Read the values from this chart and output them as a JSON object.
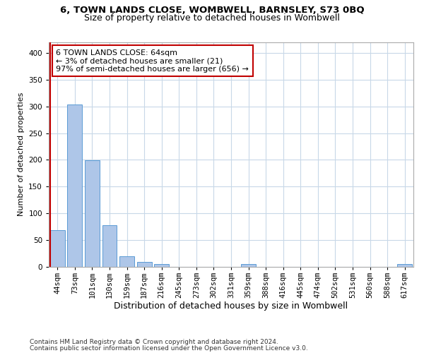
{
  "title": "6, TOWN LANDS CLOSE, WOMBWELL, BARNSLEY, S73 0BQ",
  "subtitle": "Size of property relative to detached houses in Wombwell",
  "xlabel": "Distribution of detached houses by size in Wombwell",
  "ylabel": "Number of detached properties",
  "categories": [
    "44sqm",
    "73sqm",
    "101sqm",
    "130sqm",
    "159sqm",
    "187sqm",
    "216sqm",
    "245sqm",
    "273sqm",
    "302sqm",
    "331sqm",
    "359sqm",
    "388sqm",
    "416sqm",
    "445sqm",
    "474sqm",
    "502sqm",
    "531sqm",
    "560sqm",
    "588sqm",
    "617sqm"
  ],
  "values": [
    68,
    304,
    199,
    77,
    19,
    8,
    4,
    0,
    0,
    0,
    0,
    5,
    0,
    0,
    0,
    0,
    0,
    0,
    0,
    0,
    4
  ],
  "bar_color": "#aec6e8",
  "bar_edge_color": "#5b9bd5",
  "highlight_color": "#c00000",
  "highlight_index": 0,
  "annotation_line1": "6 TOWN LANDS CLOSE: 64sqm",
  "annotation_line2": "← 3% of detached houses are smaller (21)",
  "annotation_line3": "97% of semi-detached houses are larger (656) →",
  "annotation_box_color": "#ffffff",
  "annotation_box_edge": "#c00000",
  "ylim": [
    0,
    420
  ],
  "yticks": [
    0,
    50,
    100,
    150,
    200,
    250,
    300,
    350,
    400
  ],
  "footer1": "Contains HM Land Registry data © Crown copyright and database right 2024.",
  "footer2": "Contains public sector information licensed under the Open Government Licence v3.0.",
  "bg_color": "#ffffff",
  "grid_color": "#c8d8e8",
  "title_fontsize": 9.5,
  "subtitle_fontsize": 9,
  "xlabel_fontsize": 9,
  "ylabel_fontsize": 8,
  "tick_fontsize": 7.5,
  "annotation_fontsize": 8,
  "footer_fontsize": 6.5
}
